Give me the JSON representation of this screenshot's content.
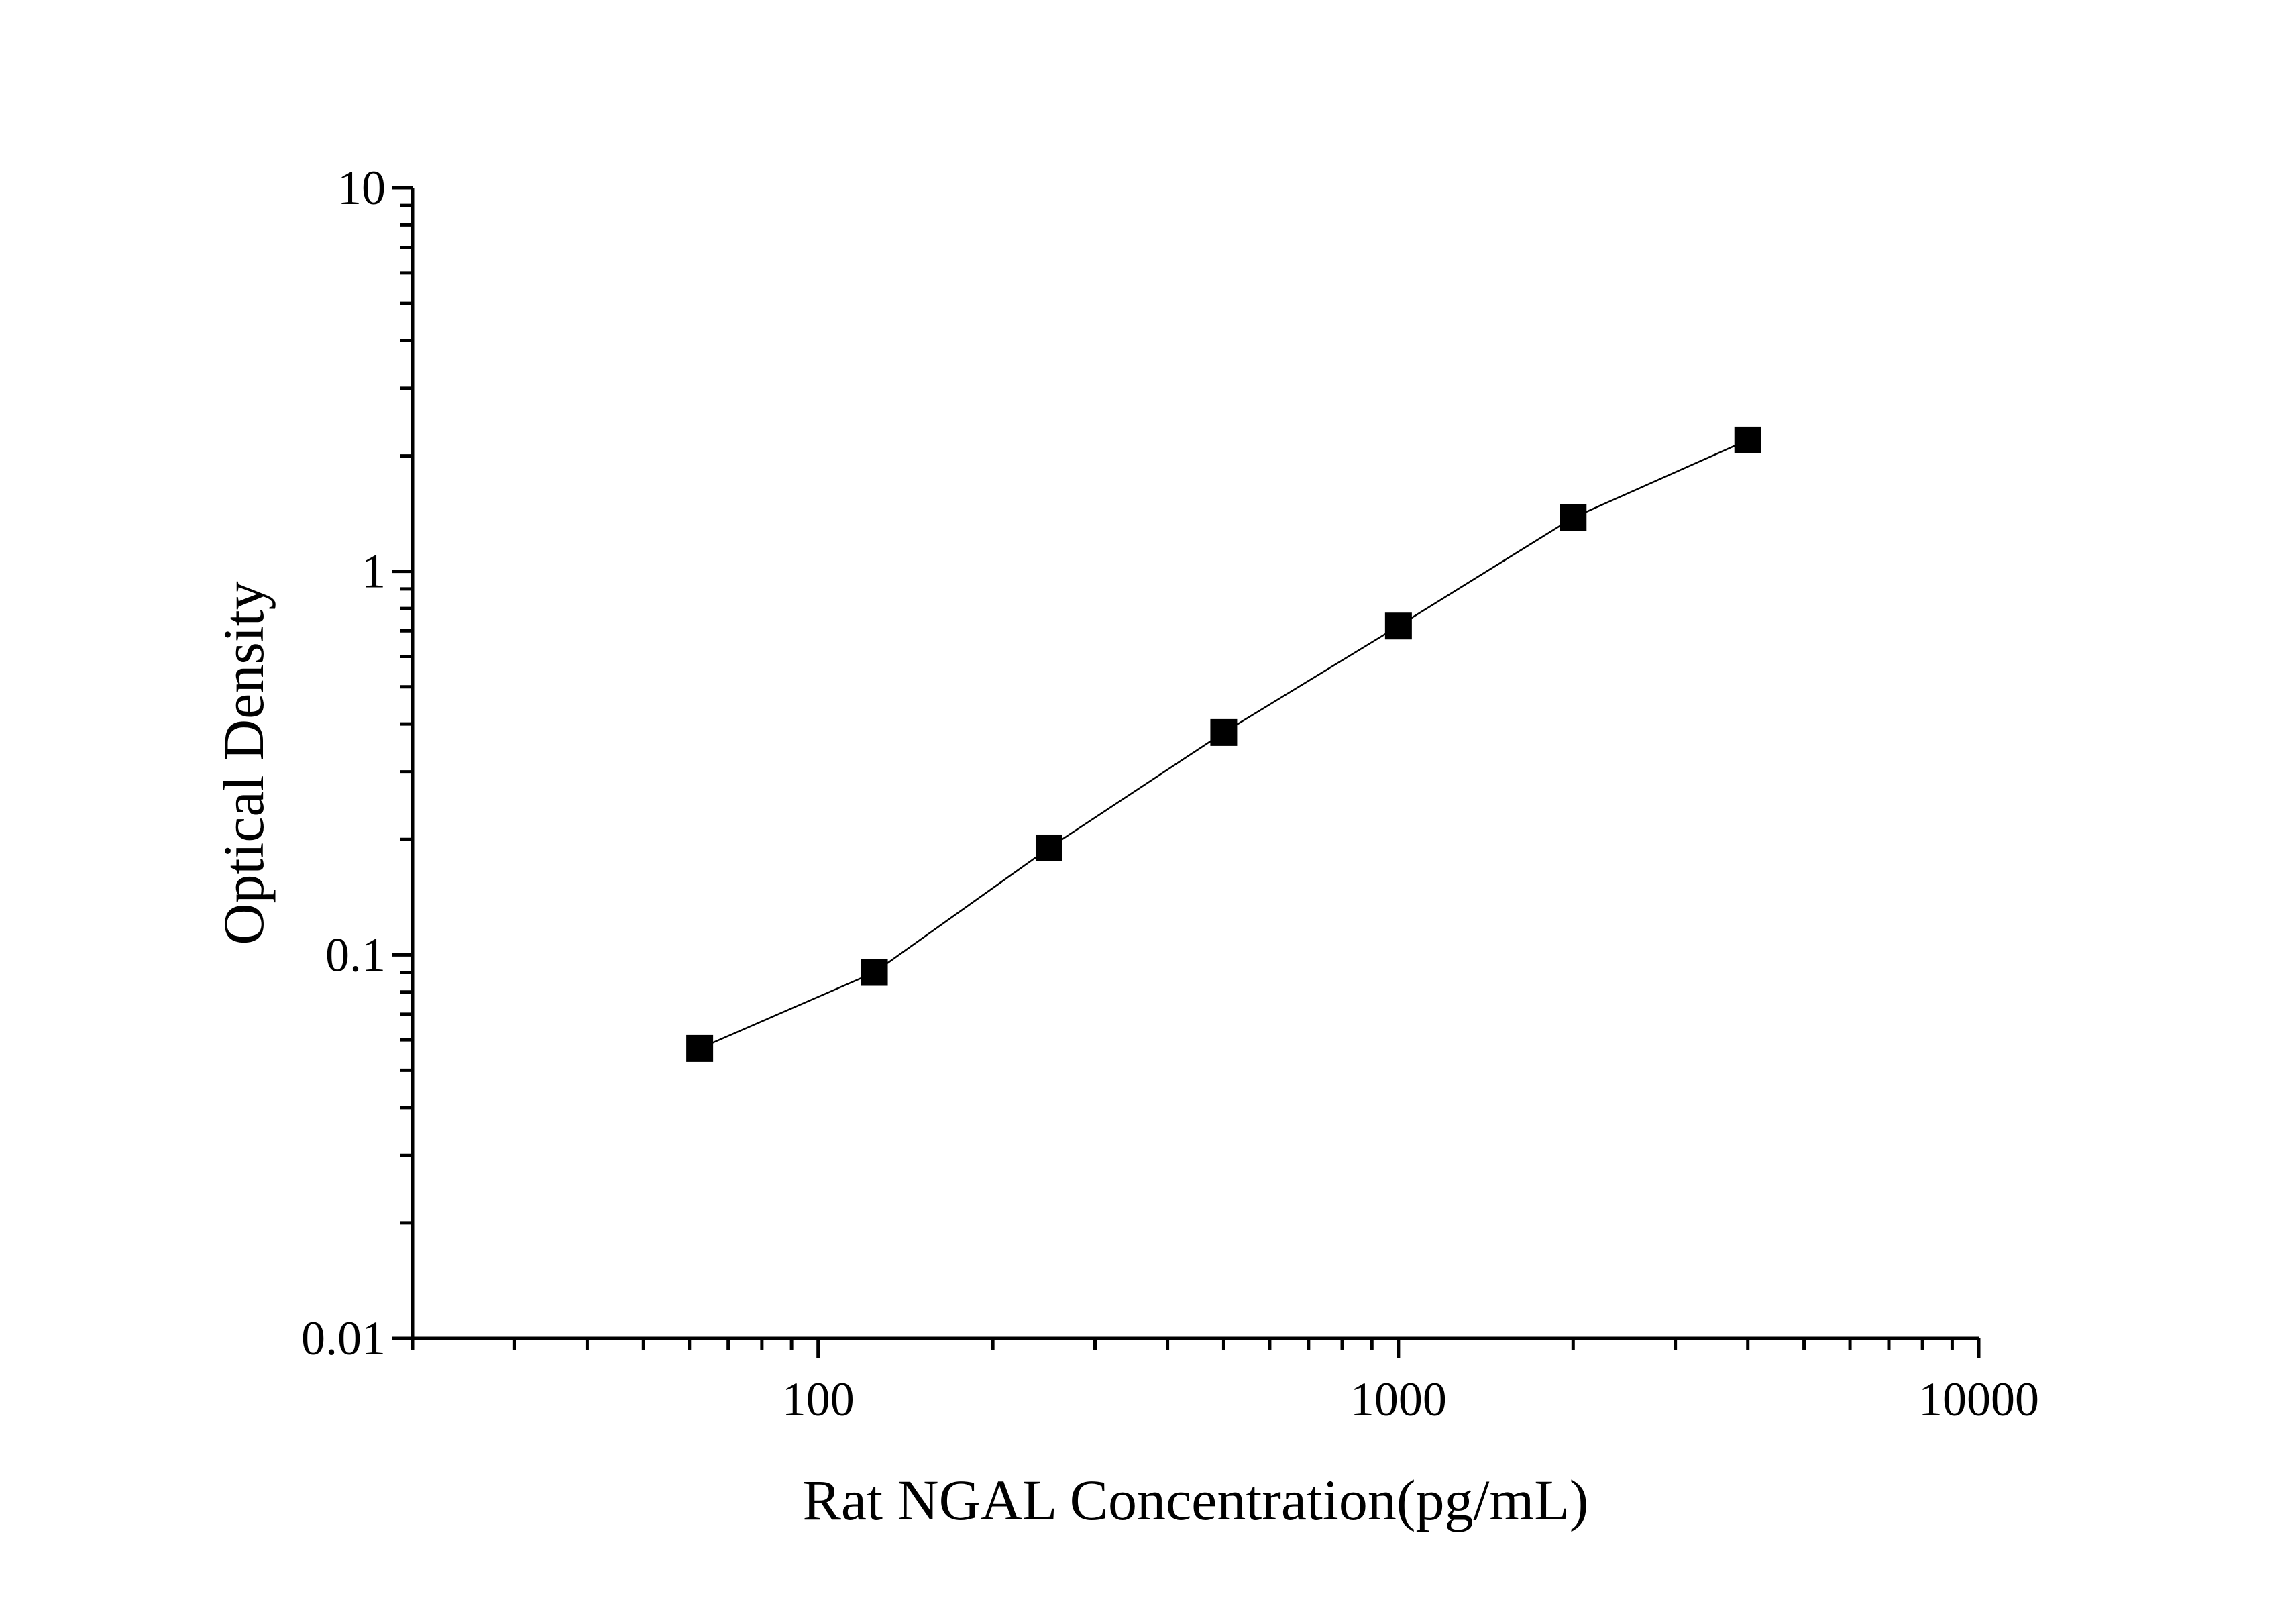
{
  "chart_data": {
    "type": "line",
    "xlabel": "Rat NGAL Concentration(pg/mL)",
    "ylabel": "Optical Density",
    "xscale": "log",
    "yscale": "log",
    "xlim": [
      20,
      10000
    ],
    "ylim": [
      0.01,
      10
    ],
    "xticks": [
      {
        "value": 100,
        "label": "100"
      },
      {
        "value": 1000,
        "label": "1000"
      },
      {
        "value": 10000,
        "label": "10000"
      }
    ],
    "yticks": [
      {
        "value": 0.01,
        "label": "0.01"
      },
      {
        "value": 0.1,
        "label": "0.1"
      },
      {
        "value": 1,
        "label": "1"
      },
      {
        "value": 10,
        "label": "10"
      }
    ],
    "grid": false,
    "marker": "square",
    "series": [
      {
        "x": [
          62.5,
          125,
          250,
          500,
          1000,
          2000,
          4000
        ],
        "y": [
          0.057,
          0.09,
          0.19,
          0.38,
          0.72,
          1.38,
          2.2
        ]
      }
    ],
    "colors": {
      "line": "#000000",
      "marker": "#000000",
      "axis": "#000000"
    }
  }
}
